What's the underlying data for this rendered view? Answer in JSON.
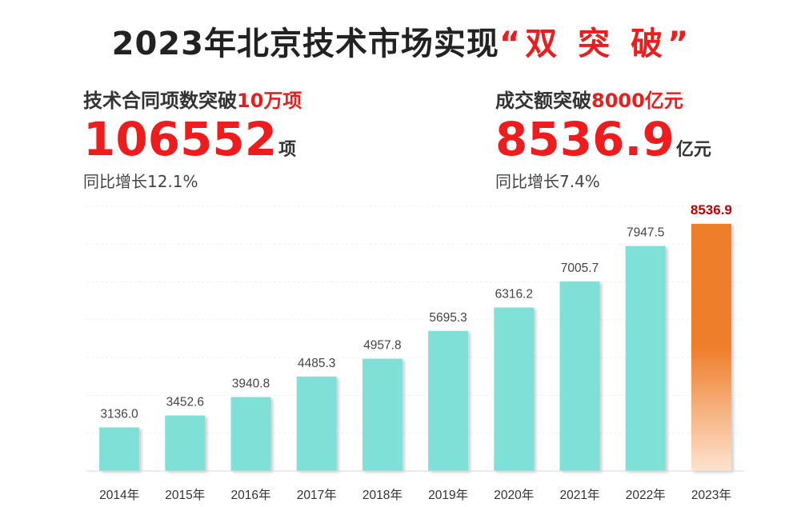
{
  "title": {
    "main": "2023年北京技术市场实现",
    "accent": "“双 突 破”"
  },
  "contracts": {
    "headline": "技术合同项数突破",
    "headline_highlight": "10万项",
    "value": "106552",
    "unit": "项",
    "growth": "同比增长12.1%"
  },
  "turnover": {
    "headline": "成交额突破",
    "headline_highlight": "8000亿元",
    "value": "8536.9",
    "unit": "亿元",
    "growth": "同比增长7.4%"
  },
  "colors": {
    "bar": "#7fe0d7",
    "highlight_top": "#ef7e2b",
    "highlight_bottom": "#fde3d0",
    "accent": "#ee1c1c",
    "highlight_label": "#c00000"
  },
  "chart_data": {
    "type": "bar",
    "categories": [
      "2014年",
      "2015年",
      "2016年",
      "2017年",
      "2018年",
      "2019年",
      "2020年",
      "2021年",
      "2022年",
      "2023年"
    ],
    "values": [
      3136.0,
      3452.6,
      3940.8,
      4485.3,
      4957.8,
      5695.3,
      6316.2,
      7005.7,
      7947.5,
      8536.9
    ],
    "data_labels": [
      "3136.0",
      "3452.6",
      "3940.8",
      "4485.3",
      "4957.8",
      "5695.3",
      "6316.2",
      "7005.7",
      "7947.5",
      "8536.9"
    ],
    "highlight_index": 9,
    "title": "",
    "xlabel": "",
    "ylabel": "",
    "ylim": [
      1980,
      9000
    ],
    "grid": true
  }
}
